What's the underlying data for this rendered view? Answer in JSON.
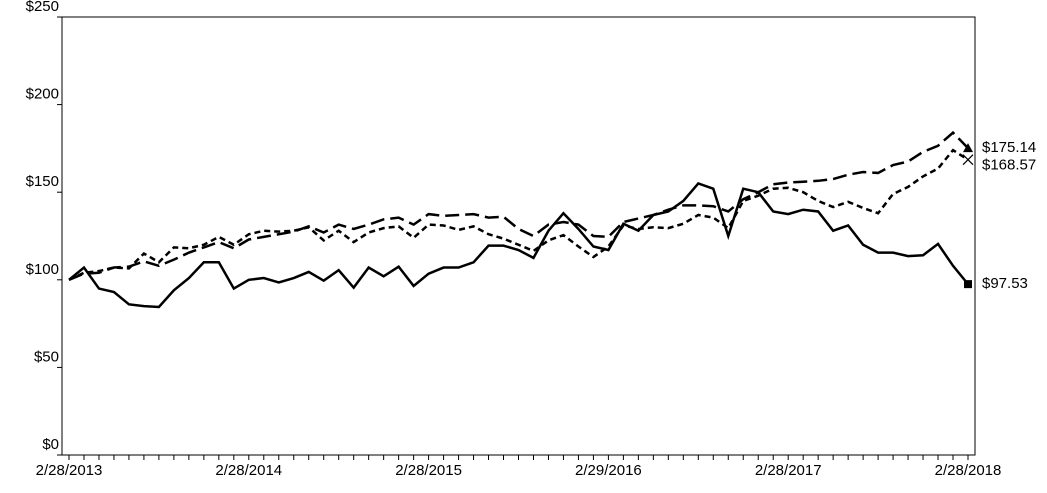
{
  "chart_data": {
    "type": "line",
    "categories": [
      "2/28/2013",
      null,
      null,
      null,
      null,
      null,
      null,
      null,
      null,
      null,
      null,
      null,
      "2/28/2014",
      null,
      null,
      null,
      null,
      null,
      null,
      null,
      null,
      null,
      null,
      null,
      "2/28/2015",
      null,
      null,
      null,
      null,
      null,
      null,
      null,
      null,
      null,
      null,
      null,
      "2/29/2016",
      null,
      null,
      null,
      null,
      null,
      null,
      null,
      null,
      null,
      null,
      null,
      "2/28/2017",
      null,
      null,
      null,
      null,
      null,
      null,
      null,
      null,
      null,
      null,
      null,
      "2/28/2018"
    ],
    "ylim": [
      0,
      250
    ],
    "yticks": [
      {
        "value": 0,
        "label": "$0"
      },
      {
        "value": 50,
        "label": "$50"
      },
      {
        "value": 100,
        "label": "$100"
      },
      {
        "value": 150,
        "label": "$150"
      },
      {
        "value": 200,
        "label": "$200"
      },
      {
        "value": 250,
        "label": "$250"
      }
    ],
    "series": [
      {
        "color": "#000000",
        "dash": "solid",
        "marker": "square",
        "values": [
          100,
          107,
          95,
          93,
          86,
          85,
          84.5,
          94,
          101,
          110,
          110,
          95,
          100,
          101,
          98.5,
          101,
          104.5,
          99.5,
          105.5,
          95.5,
          107,
          102,
          107.5,
          96.5,
          103.5,
          107,
          107,
          110,
          119.5,
          119.5,
          117,
          112.5,
          128,
          138,
          129,
          119,
          117,
          132,
          128,
          137,
          139,
          145,
          155,
          152,
          125,
          152,
          150,
          139,
          137.5,
          140,
          139,
          128,
          131,
          120,
          115.5,
          115.5,
          113.5,
          114,
          120.5,
          108,
          97.53
        ],
        "value_labels": [
          null,
          null,
          null,
          null,
          null,
          null,
          null,
          null,
          null,
          null,
          null,
          null,
          null,
          null,
          null,
          null,
          null,
          null,
          null,
          null,
          null,
          null,
          null,
          null,
          null,
          null,
          null,
          null,
          null,
          null,
          null,
          null,
          null,
          null,
          null,
          null,
          null,
          null,
          null,
          null,
          null,
          null,
          null,
          null,
          null,
          null,
          null,
          null,
          null,
          null,
          null,
          null,
          null,
          null,
          null,
          null,
          null,
          null,
          null,
          null,
          "$97.53"
        ]
      },
      {
        "color": "#000000",
        "dash": "long",
        "marker": "triangle",
        "values": [
          100,
          103.5,
          104,
          107,
          107.5,
          110.5,
          108,
          111.5,
          115.5,
          118.5,
          121.5,
          118,
          123,
          124.5,
          126,
          127.5,
          130.5,
          127,
          131.5,
          129,
          131.5,
          134.5,
          135.5,
          131.5,
          137.5,
          136.5,
          137,
          137.5,
          135.5,
          136,
          129,
          125,
          131.5,
          133,
          131.5,
          125,
          124.5,
          133,
          135,
          137,
          140,
          142.5,
          142.5,
          142,
          139,
          146,
          150,
          154.5,
          155.5,
          156,
          156.5,
          157.5,
          160,
          161.5,
          161,
          165.5,
          167.5,
          173,
          176.5,
          184,
          175.14
        ],
        "value_labels": [
          null,
          null,
          null,
          null,
          null,
          null,
          null,
          null,
          null,
          null,
          null,
          null,
          null,
          null,
          null,
          null,
          null,
          null,
          null,
          null,
          null,
          null,
          null,
          null,
          null,
          null,
          null,
          null,
          null,
          null,
          null,
          null,
          null,
          null,
          null,
          null,
          null,
          null,
          null,
          null,
          null,
          null,
          null,
          null,
          null,
          null,
          null,
          null,
          null,
          null,
          null,
          null,
          null,
          null,
          null,
          null,
          null,
          null,
          null,
          null,
          "$175.14"
        ]
      },
      {
        "color": "#000000",
        "dash": "short",
        "marker": "x",
        "values": [
          100,
          104,
          105,
          107,
          106.5,
          115,
          110,
          118.5,
          118,
          120,
          124.5,
          120,
          126,
          128,
          127.5,
          128,
          130,
          122.5,
          128,
          121.5,
          127,
          129.5,
          130.5,
          124,
          131.5,
          131,
          128.5,
          130.5,
          126,
          123.5,
          120,
          116.5,
          122.5,
          125.5,
          119,
          113,
          119,
          131,
          129,
          130,
          129.5,
          132,
          137,
          135.5,
          129.5,
          145,
          148,
          152,
          152.5,
          150,
          145,
          141.5,
          144.5,
          141,
          138,
          149,
          153,
          159,
          163.5,
          174,
          168.57
        ],
        "value_labels": [
          null,
          null,
          null,
          null,
          null,
          null,
          null,
          null,
          null,
          null,
          null,
          null,
          null,
          null,
          null,
          null,
          null,
          null,
          null,
          null,
          null,
          null,
          null,
          null,
          null,
          null,
          null,
          null,
          null,
          null,
          null,
          null,
          null,
          null,
          null,
          null,
          null,
          null,
          null,
          null,
          null,
          null,
          null,
          null,
          null,
          null,
          null,
          null,
          null,
          null,
          null,
          null,
          null,
          null,
          null,
          null,
          null,
          null,
          null,
          null,
          "$168.57"
        ]
      }
    ]
  }
}
